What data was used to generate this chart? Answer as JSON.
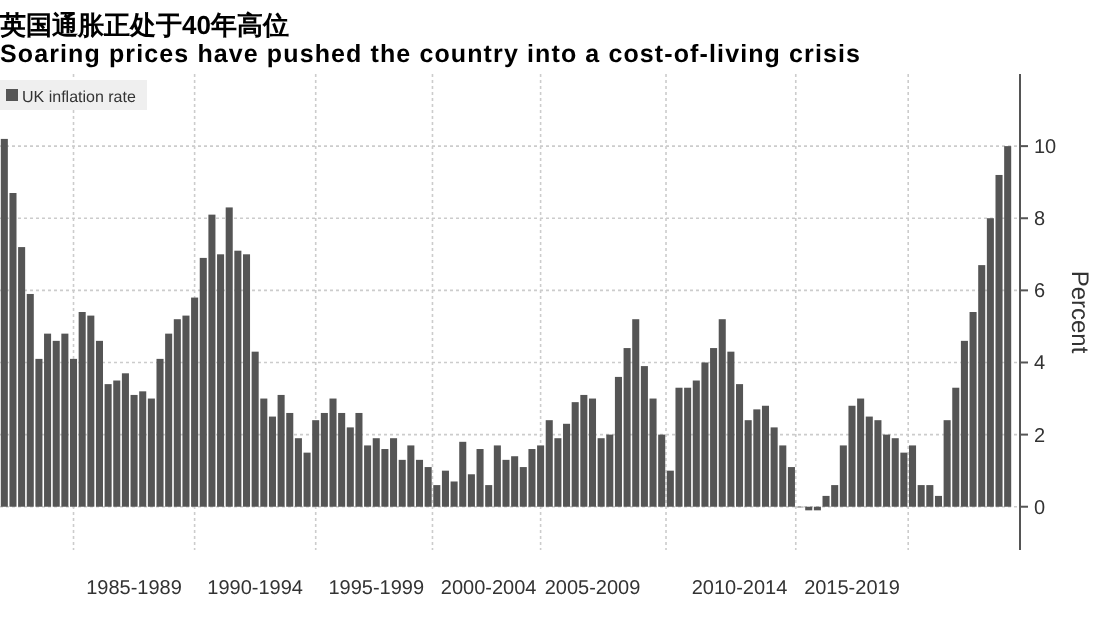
{
  "chart_data": {
    "type": "bar",
    "title": "英国通胀正处于40年高位",
    "subtitle": "Soaring prices have pushed the country into a cost-of-living crisis",
    "ylabel": "Percent",
    "legend": "top left",
    "grid": true,
    "categories": [
      null,
      null,
      null,
      null,
      null,
      null,
      null,
      null,
      null,
      null,
      null,
      null,
      null,
      null,
      null,
      "1985-1989",
      null,
      null,
      null,
      null,
      null,
      null,
      null,
      null,
      null,
      null,
      null,
      null,
      null,
      "1990-1994",
      null,
      null,
      null,
      null,
      null,
      null,
      null,
      null,
      null,
      null,
      null,
      null,
      null,
      "1995-1999",
      null,
      null,
      null,
      null,
      null,
      null,
      null,
      null,
      null,
      null,
      null,
      null,
      "2000-2004",
      null,
      null,
      null,
      null,
      null,
      null,
      null,
      null,
      null,
      null,
      null,
      "2005-2009",
      null,
      null,
      null,
      null,
      null,
      null,
      null,
      null,
      null,
      null,
      null,
      null,
      null,
      null,
      null,
      null,
      "2010-2014",
      null,
      null,
      null,
      null,
      null,
      null,
      null,
      null,
      null,
      null,
      null,
      null,
      "2015-2019",
      null,
      null,
      null,
      null,
      null,
      null,
      null,
      null,
      null,
      null,
      null,
      null,
      null,
      null,
      null,
      null,
      null,
      null
    ],
    "series": [
      {
        "name": "UK inflation rate",
        "color": "#555555",
        "values": [
          10.2,
          8.7,
          7.2,
          5.9,
          4.1,
          4.8,
          4.6,
          4.8,
          4.1,
          5.4,
          5.3,
          4.6,
          3.4,
          3.5,
          3.7,
          3.1,
          3.2,
          3.0,
          4.1,
          4.8,
          5.2,
          5.3,
          5.8,
          6.9,
          8.1,
          7.0,
          8.3,
          7.1,
          7.0,
          4.3,
          3.0,
          2.5,
          3.1,
          2.6,
          1.9,
          1.5,
          2.4,
          2.6,
          3.0,
          2.6,
          2.2,
          2.6,
          1.7,
          1.9,
          1.6,
          1.9,
          1.3,
          1.7,
          1.3,
          1.1,
          0.6,
          1.0,
          0.7,
          1.8,
          0.9,
          1.6,
          0.6,
          1.7,
          1.3,
          1.4,
          1.1,
          1.6,
          1.7,
          2.4,
          1.9,
          2.3,
          2.9,
          3.1,
          3.0,
          1.9,
          2.0,
          3.6,
          4.4,
          5.2,
          3.9,
          3.0,
          2.0,
          1.0,
          3.3,
          3.3,
          3.5,
          4.0,
          4.4,
          5.2,
          4.3,
          3.4,
          2.4,
          2.7,
          2.8,
          2.2,
          1.7,
          1.1,
          0.0,
          -0.1,
          -0.1,
          0.3,
          0.6,
          1.7,
          2.8,
          3.0,
          2.5,
          2.4,
          2.0,
          1.9,
          1.5,
          1.7,
          0.6,
          0.6,
          0.3,
          2.4,
          3.3,
          4.6,
          5.4,
          6.7,
          8.0,
          9.2,
          10.0
        ]
      }
    ],
    "ylim": [
      -1.2,
      12
    ],
    "yticks": [
      0,
      2,
      4,
      6,
      8,
      10
    ]
  }
}
